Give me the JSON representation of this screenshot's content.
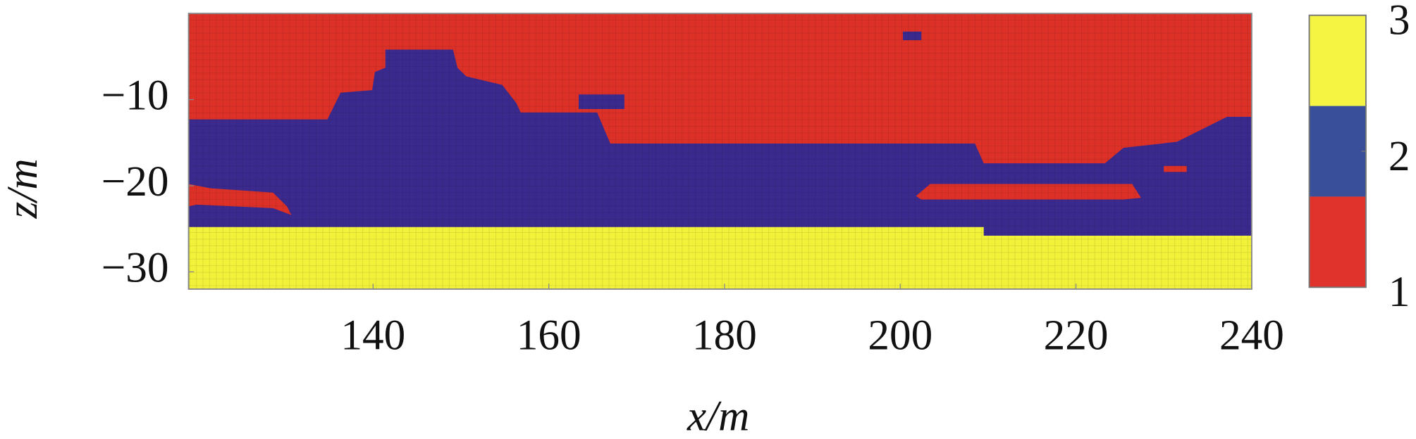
{
  "chart_data": {
    "type": "region-map",
    "xlabel": "x/m",
    "ylabel": "z/m",
    "xlim": [
      119,
      240
    ],
    "xticks": [
      140,
      160,
      180,
      200,
      220,
      240
    ],
    "ylim": [
      -32,
      0
    ],
    "yticks": [
      {
        "value": -10,
        "label": "−10"
      },
      {
        "value": -20,
        "label": "−20"
      },
      {
        "value": -30,
        "label": "−30"
      }
    ],
    "regions": [
      {
        "color": "#dd3128",
        "x": [
          119.0,
          240.0,
          240.0,
          119.0
        ],
        "z": [
          0,
          0,
          -32.0,
          -32.0
        ]
      },
      {
        "color": "#3b2a8e",
        "x": [
          119.0,
          134.8,
          136.3,
          139.9,
          140.2,
          141.4,
          141.4,
          149.1,
          149.6,
          150.6,
          154.7,
          156.3,
          156.8,
          165.5,
          167.0,
          208.5,
          209.5,
          223.3,
          225.4,
          231.5,
          237.2,
          240.0,
          240.0,
          119.0
        ],
        "z": [
          -12.3,
          -12.3,
          -9.2,
          -8.9,
          -6.8,
          -6.3,
          -4.2,
          -4.2,
          -6.3,
          -7.3,
          -8.3,
          -10.4,
          -11.5,
          -11.5,
          -15.1,
          -15.1,
          -17.4,
          -17.4,
          -15.6,
          -14.9,
          -12.0,
          -12.0,
          -32.0,
          -32.0
        ]
      },
      {
        "color": "#3b2a8e",
        "x": [
          200.3,
          202.4,
          202.4,
          200.3
        ],
        "z": [
          -2.1,
          -2.1,
          -3.1,
          -3.1
        ]
      },
      {
        "color": "#3b2a8e",
        "x": [
          163.4,
          168.6,
          168.6,
          163.4
        ],
        "z": [
          -9.4,
          -9.4,
          -11.1,
          -11.1
        ]
      },
      {
        "color": "#dd3128",
        "x": [
          119.0,
          121.5,
          128.6,
          130.2,
          130.7,
          128.6,
          119.9,
          119.0
        ],
        "z": [
          -19.8,
          -20.3,
          -20.8,
          -22.4,
          -23.4,
          -22.6,
          -22.2,
          -22.4
        ]
      },
      {
        "color": "#dd3128",
        "x": [
          201.8,
          203.4,
          226.4,
          227.4,
          225.4,
          202.4
        ],
        "z": [
          -21.2,
          -19.8,
          -19.8,
          -21.4,
          -21.6,
          -21.6
        ]
      },
      {
        "color": "#dd3128",
        "x": [
          230.0,
          232.6,
          232.6,
          230.0
        ],
        "z": [
          -17.7,
          -17.7,
          -18.4,
          -18.4
        ]
      },
      {
        "color": "#f2f23a",
        "x": [
          119.0,
          209.5,
          209.5,
          240.0,
          240.0,
          119.0
        ],
        "z": [
          -24.8,
          -24.8,
          -25.8,
          -25.8,
          -32.0,
          -32.0
        ]
      }
    ],
    "colorbar": {
      "lim": [
        1,
        3
      ],
      "ticks": [
        1,
        2,
        3
      ],
      "colors": [
        "#e0332b",
        "#3a4f9a",
        "#f6f442"
      ]
    }
  }
}
